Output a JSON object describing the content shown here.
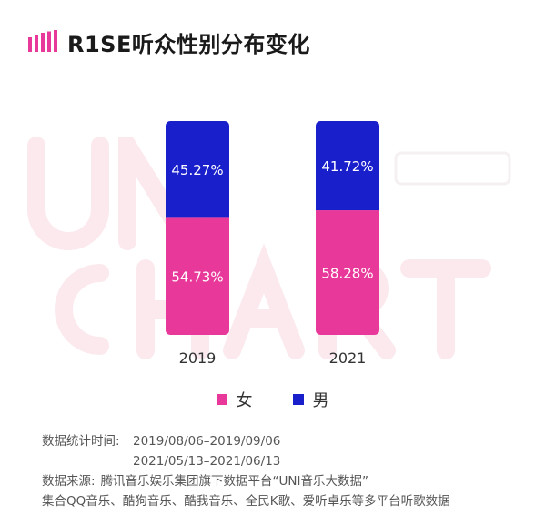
{
  "header": {
    "title": "R1SE听众性别分布变化"
  },
  "colors": {
    "female": "#E8399B",
    "male": "#1A1FCC",
    "logo": "#E8399B"
  },
  "chart_data": {
    "type": "bar",
    "stacked": true,
    "categories": [
      "2019",
      "2021"
    ],
    "series": [
      {
        "name": "女",
        "values": [
          54.73,
          58.28
        ],
        "labels": [
          "54.73%",
          "58.28%"
        ]
      },
      {
        "name": "男",
        "values": [
          45.27,
          41.72
        ],
        "labels": [
          "45.27%",
          "41.72%"
        ]
      }
    ],
    "ylim": [
      0,
      100
    ],
    "grid": false,
    "legend_position": "bottom"
  },
  "legend": {
    "female_label": "女",
    "male_label": "男"
  },
  "notes": {
    "time_label": "数据统计时间:",
    "time_1": "2019/08/06–2019/09/06",
    "time_2": "2021/05/13–2021/06/13",
    "source_label": "数据来源:",
    "source_1": "腾讯音乐娱乐集团旗下数据平台“UNI音乐大数据”",
    "source_2": "集合QQ音乐、酷狗音乐、酷我音乐、全民K歌、爱听卓乐等多平台听歌数据"
  }
}
